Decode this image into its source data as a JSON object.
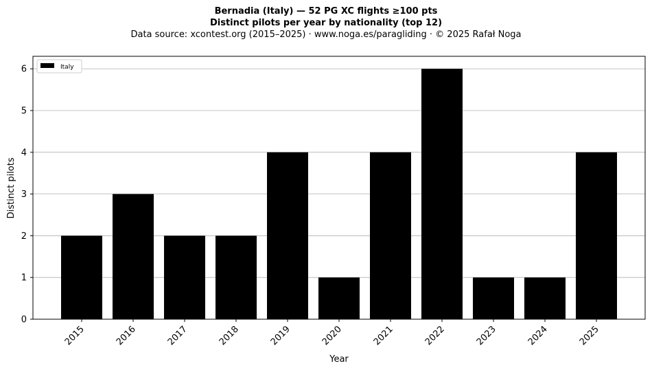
{
  "title": {
    "line1": "Bernadia (Italy)  —  52 PG XC flights ≥100 pts",
    "line2": "Distinct pilots per year by nationality (top 12)",
    "line3": "Data source: xcontest.org (2015–2025)  ·  www.noga.es/paragliding  ·  © 2025 Rafał Noga"
  },
  "chart_data": {
    "type": "bar",
    "categories": [
      "2015",
      "2016",
      "2017",
      "2018",
      "2019",
      "2020",
      "2021",
      "2022",
      "2023",
      "2024",
      "2025"
    ],
    "series": [
      {
        "name": "Italy",
        "values": [
          2,
          3,
          2,
          2,
          4,
          1,
          4,
          6,
          1,
          1,
          4
        ],
        "color": "#000000"
      }
    ],
    "xlabel": "Year",
    "ylabel": "Distinct pilots",
    "ylim": [
      0,
      6.3
    ],
    "yticks": [
      0,
      1,
      2,
      3,
      4,
      5,
      6
    ],
    "grid": "horizontal",
    "legend_position": "top-left"
  }
}
